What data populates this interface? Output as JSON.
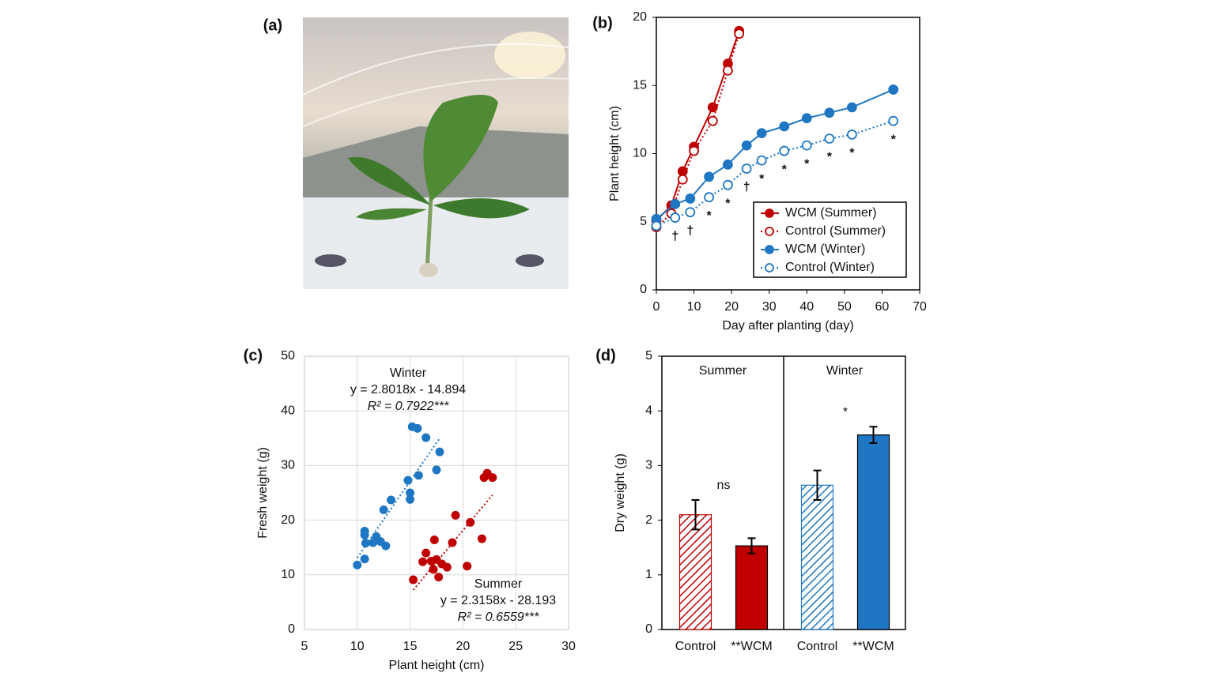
{
  "photo_panel": {
    "label": "(a)"
  },
  "chart_data": [
    {
      "type": "line",
      "label": "(b)",
      "x_label": "Day after planting (day)",
      "y_label": "Plant height (cm)",
      "xlim": [
        0,
        70
      ],
      "xticks": [
        0,
        10,
        20,
        30,
        40,
        50,
        60,
        70
      ],
      "ylim": [
        0,
        20
      ],
      "yticks": [
        0,
        5,
        10,
        15,
        20
      ],
      "legend": "lower right",
      "series": [
        {
          "name": "WCM (Summer)",
          "color": "#c00000",
          "filled": true,
          "dash": "solid",
          "x": [
            0,
            4,
            7,
            10,
            15,
            19,
            22
          ],
          "values": [
            5.1,
            6.2,
            8.7,
            10.5,
            13.4,
            16.6,
            19.0
          ]
        },
        {
          "name": "Control (Summer)",
          "color": "#c00000",
          "filled": false,
          "dash": "dotted",
          "x": [
            0,
            4,
            7,
            10,
            15,
            19,
            22
          ],
          "values": [
            4.6,
            5.6,
            8.1,
            10.2,
            12.4,
            16.1,
            18.8
          ]
        },
        {
          "name": "WCM (Winter)",
          "color": "#1f77c4",
          "filled": true,
          "dash": "solid",
          "x": [
            0,
            5,
            9,
            14,
            19,
            24,
            28,
            34,
            40,
            46,
            52,
            63
          ],
          "values": [
            5.2,
            6.3,
            6.7,
            8.3,
            9.2,
            10.6,
            11.5,
            12.0,
            12.6,
            13.0,
            13.4,
            14.7
          ]
        },
        {
          "name": "Control (Winter)",
          "color": "#1f77c4",
          "filled": false,
          "dash": "dotted",
          "x": [
            0,
            5,
            9,
            14,
            19,
            24,
            28,
            34,
            40,
            46,
            52,
            63
          ],
          "values": [
            4.7,
            5.3,
            5.7,
            6.8,
            7.7,
            8.9,
            9.5,
            10.2,
            10.6,
            11.1,
            11.4,
            12.4
          ],
          "significance": [
            null,
            "†",
            "†",
            "*",
            "*",
            "†",
            "*",
            "*",
            "*",
            "*",
            "*",
            "*"
          ]
        }
      ]
    },
    {
      "type": "scatter",
      "label": "(c)",
      "x_label": "Plant height (cm)",
      "y_label": "Fresh weight (g)",
      "xlim": [
        5,
        30
      ],
      "xticks": [
        5,
        10,
        15,
        20,
        25,
        30
      ],
      "ylim": [
        0,
        50
      ],
      "yticks": [
        0,
        10,
        20,
        30,
        40,
        50
      ],
      "grid": true,
      "series": [
        {
          "name": "Winter",
          "color": "#1f77c4",
          "equation": "y = 2.8018x - 14.894",
          "r2_label": "R² = 0.7922***",
          "slope": 2.8018,
          "intercept": -14.894,
          "x": [
            10.0,
            10.7,
            10.7,
            10.7,
            10.8,
            11.5,
            11.8,
            12.2,
            12.5,
            12.7,
            13.2,
            14.8,
            15.0,
            15.0,
            15.2,
            15.7,
            15.8,
            16.5,
            17.5,
            17.8
          ],
          "values": [
            11.8,
            12.9,
            17.3,
            18.0,
            15.8,
            15.9,
            17.0,
            16.1,
            21.9,
            15.3,
            23.7,
            27.3,
            23.8,
            25.0,
            37.1,
            36.8,
            28.2,
            35.1,
            29.2,
            32.5
          ]
        },
        {
          "name": "Summer",
          "color": "#c00000",
          "equation": "y = 2.3158x - 28.193",
          "r2_label": "R² = 0.6559***",
          "slope": 2.3158,
          "intercept": -28.193,
          "x": [
            15.3,
            16.2,
            16.5,
            17.0,
            17.2,
            17.3,
            17.5,
            17.7,
            18.0,
            18.5,
            19.0,
            19.3,
            20.4,
            20.7,
            21.8,
            22.0,
            22.3,
            22.8
          ],
          "values": [
            9.1,
            12.4,
            14.0,
            12.5,
            11.0,
            16.4,
            12.8,
            9.6,
            12.0,
            11.4,
            15.9,
            20.9,
            11.6,
            19.6,
            16.6,
            27.8,
            28.6,
            27.8
          ]
        }
      ]
    },
    {
      "type": "bar",
      "label": "(d)",
      "y_label": "Dry weight (g)",
      "ylim": [
        0,
        5
      ],
      "yticks": [
        0,
        1,
        2,
        3,
        4,
        5
      ],
      "patterns": [
        "hatched",
        "solid"
      ],
      "groups": [
        {
          "name": "Summer",
          "color": "#c00000",
          "categories": [
            "Control",
            "**WCM"
          ],
          "values": [
            2.1,
            1.53
          ],
          "errors": [
            0.27,
            0.14
          ],
          "significance": "ns"
        },
        {
          "name": "Winter",
          "color": "#1f77c4",
          "categories": [
            "Control",
            "**WCM"
          ],
          "values": [
            2.64,
            3.56
          ],
          "errors": [
            0.27,
            0.15
          ],
          "significance": "*"
        }
      ]
    }
  ]
}
